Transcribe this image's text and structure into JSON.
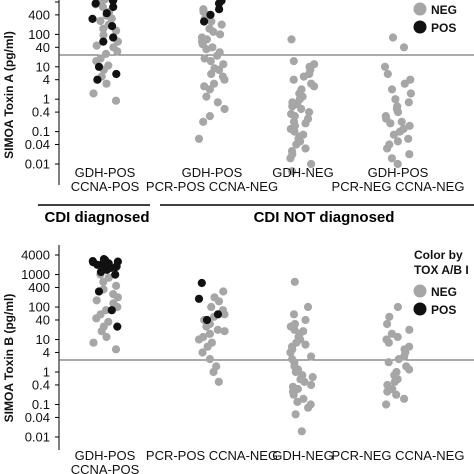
{
  "chart_data": [
    {
      "type": "scatter",
      "ylabel": "SIMOA Toxin A (pg/ml)",
      "yscale": "log",
      "ytick_labels": [
        "",
        "400",
        "100",
        "40",
        "10",
        "4",
        "1",
        "0.4",
        "0.1",
        "0.04",
        "0.01"
      ],
      "ytick_values": [
        1000,
        400,
        100,
        40,
        10,
        4,
        1,
        0.4,
        0.1,
        0.04,
        0.01
      ],
      "threshold": 20,
      "categories": [
        [
          "GDH-POS",
          "CCNA-POS"
        ],
        [
          "GDH-POS",
          "PCR-POS CCNA-NEG"
        ],
        [
          "GDH-NEG"
        ],
        [
          "GDH-POS",
          "PCR-NEG CCNA-NEG"
        ]
      ],
      "group_labels": [
        "CDI diagnosed",
        "CDI NOT diagnosed"
      ],
      "legend": [
        "NEG",
        "POS"
      ],
      "colors": {
        "NEG": "#a6a6a6",
        "POS": "#111111"
      },
      "series": [
        {
          "name": "NEG",
          "points": [
            [
              0,
              0.9
            ],
            [
              0,
              1.5
            ],
            [
              0,
              3
            ],
            [
              0,
              5
            ],
            [
              0,
              8
            ],
            [
              0,
              11
            ],
            [
              0,
              15
            ],
            [
              0,
              18
            ],
            [
              0,
              25
            ],
            [
              0,
              30
            ],
            [
              0,
              40
            ],
            [
              0,
              45
            ],
            [
              0,
              60
            ],
            [
              0,
              80
            ],
            [
              0,
              95
            ],
            [
              0,
              130
            ],
            [
              0,
              150
            ],
            [
              0,
              200
            ],
            [
              0,
              260
            ],
            [
              0,
              310
            ],
            [
              0,
              380
            ],
            [
              0,
              500
            ],
            [
              0,
              700
            ],
            [
              0,
              850
            ],
            [
              0,
              1000
            ],
            [
              0,
              1200
            ],
            [
              1,
              0.06
            ],
            [
              1,
              0.2
            ],
            [
              1,
              0.3
            ],
            [
              1,
              0.5
            ],
            [
              1,
              0.8
            ],
            [
              1,
              1.2
            ],
            [
              1,
              2
            ],
            [
              1,
              2.5
            ],
            [
              1,
              3
            ],
            [
              1,
              4
            ],
            [
              1,
              5
            ],
            [
              1,
              6
            ],
            [
              1,
              8
            ],
            [
              1,
              9
            ],
            [
              1,
              12
            ],
            [
              1,
              15
            ],
            [
              1,
              18
            ],
            [
              1,
              22
            ],
            [
              1,
              28
            ],
            [
              1,
              35
            ],
            [
              1,
              40
            ],
            [
              1,
              50
            ],
            [
              1,
              60
            ],
            [
              1,
              70
            ],
            [
              1,
              80
            ],
            [
              1,
              100
            ],
            [
              1,
              120
            ],
            [
              1,
              150
            ],
            [
              1,
              200
            ],
            [
              1,
              250
            ],
            [
              1,
              300
            ],
            [
              1,
              400
            ],
            [
              1,
              500
            ],
            [
              1,
              600
            ],
            [
              2,
              0.006
            ],
            [
              2,
              0.01
            ],
            [
              2,
              0.015
            ],
            [
              2,
              0.02
            ],
            [
              2,
              0.025
            ],
            [
              2,
              0.03
            ],
            [
              2,
              0.04
            ],
            [
              2,
              0.05
            ],
            [
              2,
              0.06
            ],
            [
              2,
              0.07
            ],
            [
              2,
              0.08
            ],
            [
              2,
              0.1
            ],
            [
              2,
              0.12
            ],
            [
              2,
              0.15
            ],
            [
              2,
              0.18
            ],
            [
              2,
              0.2
            ],
            [
              2,
              0.25
            ],
            [
              2,
              0.3
            ],
            [
              2,
              0.35
            ],
            [
              2,
              0.4
            ],
            [
              2,
              0.5
            ],
            [
              2,
              0.6
            ],
            [
              2,
              0.7
            ],
            [
              2,
              0.8
            ],
            [
              2,
              1
            ],
            [
              2,
              1.2
            ],
            [
              2,
              1.5
            ],
            [
              2,
              2
            ],
            [
              2,
              2.5
            ],
            [
              2,
              3
            ],
            [
              2,
              4
            ],
            [
              2,
              5
            ],
            [
              2,
              6
            ],
            [
              2,
              8
            ],
            [
              2,
              10
            ],
            [
              2,
              12
            ],
            [
              2,
              15
            ],
            [
              2,
              70
            ],
            [
              3,
              0.01
            ],
            [
              3,
              0.015
            ],
            [
              3,
              0.02
            ],
            [
              3,
              0.03
            ],
            [
              3,
              0.04
            ],
            [
              3,
              0.05
            ],
            [
              3,
              0.06
            ],
            [
              3,
              0.08
            ],
            [
              3,
              0.1
            ],
            [
              3,
              0.12
            ],
            [
              3,
              0.15
            ],
            [
              3,
              0.18
            ],
            [
              3,
              0.2
            ],
            [
              3,
              0.25
            ],
            [
              3,
              0.3
            ],
            [
              3,
              0.4
            ],
            [
              3,
              0.5
            ],
            [
              3,
              0.6
            ],
            [
              3,
              0.8
            ],
            [
              3,
              1
            ],
            [
              3,
              1.5
            ],
            [
              3,
              2
            ],
            [
              3,
              3
            ],
            [
              3,
              4
            ],
            [
              3,
              6
            ],
            [
              3,
              10
            ],
            [
              3,
              40
            ],
            [
              3,
              80
            ]
          ]
        },
        {
          "name": "POS",
          "points": [
            [
              0,
              4
            ],
            [
              0,
              6
            ],
            [
              0,
              10
            ],
            [
              0,
              60
            ],
            [
              0,
              80
            ],
            [
              0,
              180
            ],
            [
              0,
              300
            ],
            [
              0,
              450
            ],
            [
              0,
              700
            ],
            [
              0,
              900
            ],
            [
              0,
              1100
            ],
            [
              0,
              1200
            ],
            [
              1,
              250
            ],
            [
              1,
              400
            ],
            [
              1,
              600
            ],
            [
              1,
              900
            ],
            [
              1,
              1100
            ]
          ]
        }
      ]
    },
    {
      "type": "scatter",
      "ylabel": "SIMOA Toxin B (pg/ml)",
      "yscale": "log",
      "ytick_labels": [
        "4000",
        "1000",
        "400",
        "100",
        "40",
        "10",
        "4",
        "1",
        "0.4",
        "0.1",
        "0.04",
        "0.01"
      ],
      "ytick_values": [
        4000,
        1000,
        400,
        100,
        40,
        10,
        4,
        1,
        0.4,
        0.1,
        0.04,
        0.01
      ],
      "threshold": 20,
      "categories": [
        [
          "GDH-POS",
          "CCNA-POS"
        ],
        [
          "PCR-POS CCNA-NEG"
        ],
        [
          "GDH-NEG"
        ],
        [
          "PCR-NEG CCNA-NEG"
        ]
      ],
      "legend_title": [
        "Color by",
        "TOX A/B I"
      ],
      "legend": [
        "NEG",
        "POS"
      ],
      "colors": {
        "NEG": "#a6a6a6",
        "POS": "#111111"
      },
      "series": [
        {
          "name": "NEG",
          "points": [
            [
              0,
              5
            ],
            [
              0,
              8
            ],
            [
              0,
              12
            ],
            [
              0,
              18
            ],
            [
              0,
              25
            ],
            [
              0,
              35
            ],
            [
              0,
              45
            ],
            [
              0,
              60
            ],
            [
              0,
              80
            ],
            [
              0,
              100
            ],
            [
              0,
              130
            ],
            [
              0,
              160
            ],
            [
              0,
              200
            ],
            [
              0,
              250
            ],
            [
              0,
              350
            ],
            [
              0,
              450
            ],
            [
              0,
              600
            ],
            [
              0,
              800
            ],
            [
              0,
              1000
            ],
            [
              1,
              0.5
            ],
            [
              1,
              1
            ],
            [
              1,
              1.5
            ],
            [
              1,
              2.5
            ],
            [
              1,
              4
            ],
            [
              1,
              6
            ],
            [
              1,
              8
            ],
            [
              1,
              10
            ],
            [
              1,
              12
            ],
            [
              1,
              15
            ],
            [
              1,
              18
            ],
            [
              1,
              20
            ],
            [
              1,
              25
            ],
            [
              1,
              30
            ],
            [
              1,
              40
            ],
            [
              1,
              50
            ],
            [
              1,
              60
            ],
            [
              1,
              80
            ],
            [
              1,
              100
            ],
            [
              1,
              150
            ],
            [
              1,
              200
            ],
            [
              1,
              300
            ],
            [
              2,
              0.015
            ],
            [
              2,
              0.05
            ],
            [
              2,
              0.08
            ],
            [
              2,
              0.1
            ],
            [
              2,
              0.12
            ],
            [
              2,
              0.15
            ],
            [
              2,
              0.2
            ],
            [
              2,
              0.25
            ],
            [
              2,
              0.3
            ],
            [
              2,
              0.35
            ],
            [
              2,
              0.4
            ],
            [
              2,
              0.5
            ],
            [
              2,
              0.6
            ],
            [
              2,
              0.7
            ],
            [
              2,
              0.8
            ],
            [
              2,
              1
            ],
            [
              2,
              1.2
            ],
            [
              2,
              1.5
            ],
            [
              2,
              2
            ],
            [
              2,
              2.5
            ],
            [
              2,
              3
            ],
            [
              2,
              4
            ],
            [
              2,
              5
            ],
            [
              2,
              6
            ],
            [
              2,
              7
            ],
            [
              2,
              8
            ],
            [
              2,
              10
            ],
            [
              2,
              12
            ],
            [
              2,
              15
            ],
            [
              2,
              18
            ],
            [
              2,
              20
            ],
            [
              2,
              25
            ],
            [
              2,
              30
            ],
            [
              2,
              40
            ],
            [
              2,
              60
            ],
            [
              2,
              100
            ],
            [
              2,
              600
            ],
            [
              3,
              0.1
            ],
            [
              3,
              0.15
            ],
            [
              3,
              0.2
            ],
            [
              3,
              0.25
            ],
            [
              3,
              0.3
            ],
            [
              3,
              0.4
            ],
            [
              3,
              0.5
            ],
            [
              3,
              0.6
            ],
            [
              3,
              0.8
            ],
            [
              3,
              1
            ],
            [
              3,
              1.2
            ],
            [
              3,
              1.5
            ],
            [
              3,
              2
            ],
            [
              3,
              2.5
            ],
            [
              3,
              3
            ],
            [
              3,
              4
            ],
            [
              3,
              5
            ],
            [
              3,
              6
            ],
            [
              3,
              8
            ],
            [
              3,
              10
            ],
            [
              3,
              12
            ],
            [
              3,
              15
            ],
            [
              3,
              20
            ],
            [
              3,
              30
            ],
            [
              3,
              50
            ],
            [
              3,
              100
            ]
          ]
        },
        {
          "name": "POS",
          "points": [
            [
              0,
              1000
            ],
            [
              0,
              1200
            ],
            [
              0,
              1400
            ],
            [
              0,
              1600
            ],
            [
              0,
              1800
            ],
            [
              0,
              2000
            ],
            [
              0,
              2200
            ],
            [
              0,
              2400
            ],
            [
              0,
              2600
            ],
            [
              0,
              2800
            ],
            [
              0,
              3000
            ],
            [
              0,
              1500
            ],
            [
              0,
              1700
            ],
            [
              0,
              2100
            ],
            [
              0,
              2500
            ],
            [
              0,
              300
            ],
            [
              0,
              80
            ],
            [
              0,
              25
            ],
            [
              1,
              550
            ],
            [
              1,
              180
            ],
            [
              1,
              60
            ],
            [
              1,
              40
            ]
          ]
        }
      ]
    }
  ]
}
